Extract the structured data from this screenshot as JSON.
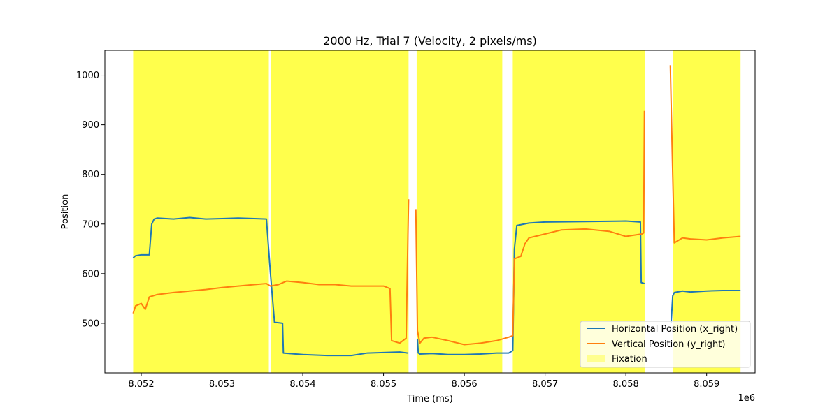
{
  "chart_data": {
    "type": "line",
    "title": "2000 Hz, Trial 7 (Velocity, 2 pixels/ms)",
    "xlabel": "Time (ms)",
    "ylabel": "Position",
    "x_offset_label": "1e6",
    "xlim": [
      8.05155,
      8.0596
    ],
    "ylim": [
      400,
      1050
    ],
    "x_ticks": [
      8.052,
      8.053,
      8.054,
      8.055,
      8.056,
      8.057,
      8.058,
      8.059
    ],
    "x_tick_labels": [
      "8.052",
      "8.053",
      "8.054",
      "8.055",
      "8.056",
      "8.057",
      "8.058",
      "8.059"
    ],
    "y_ticks": [
      500,
      600,
      700,
      800,
      900,
      1000
    ],
    "y_tick_labels": [
      "500",
      "600",
      "700",
      "800",
      "900",
      "1000"
    ],
    "grid": false,
    "legend_position": "lower-right",
    "colors": {
      "x_right": "#1f77b4",
      "y_right": "#ff7f0e",
      "fixation": "#ffff00"
    },
    "legend": [
      {
        "label": "Horizontal Position (x_right)",
        "type": "line",
        "color": "#1f77b4"
      },
      {
        "label": "Vertical Position (y_right)",
        "type": "line",
        "color": "#ff7f0e"
      },
      {
        "label": "Fixation",
        "type": "patch",
        "color": "#ffff00"
      }
    ],
    "fixation_spans": [
      [
        8.0519,
        8.05358
      ],
      [
        8.05361,
        8.05531
      ],
      [
        8.05541,
        8.05647
      ],
      [
        8.0566,
        8.05824
      ],
      [
        8.05858,
        8.05942
      ]
    ],
    "series": [
      {
        "name": "Horizontal Position (x_right)",
        "color": "#1f77b4",
        "segments": [
          {
            "x": [
              8.0519,
              8.05193,
              8.052,
              8.0521,
              8.05213,
              8.05216,
              8.0522,
              8.0524,
              8.0526,
              8.0528,
              8.053,
              8.0532,
              8.0534,
              8.05355,
              8.0536,
              8.05365,
              8.05375,
              8.05376,
              8.054,
              8.0543,
              8.0546,
              8.0548,
              8.055,
              8.0552,
              8.0553
            ],
            "y": [
              632,
              636,
              638,
              638,
              700,
              710,
              712,
              710,
              713,
              710,
              711,
              712,
              711,
              710,
              600,
              502,
              500,
              440,
              437,
              435,
              435,
              440,
              441,
              442,
              440
            ]
          },
          {
            "x": [
              8.05542,
              8.05543,
              8.05545,
              8.0556,
              8.0558,
              8.056,
              8.0562,
              8.0564,
              8.05655,
              8.0566,
              8.05662,
              8.05665,
              8.0568,
              8.057,
              8.0575,
              8.058,
              8.05818,
              8.05819,
              8.05823
            ],
            "y": [
              468,
              440,
              438,
              439,
              437,
              437,
              438,
              440,
              440,
              445,
              650,
              697,
              702,
              704,
              705,
              706,
              704,
              582,
              580
            ]
          },
          {
            "x": [
              8.05856,
              8.05858,
              8.0586,
              8.0587,
              8.0588,
              8.059,
              8.0592,
              8.05942
            ],
            "y": [
              500,
              555,
              562,
              565,
              563,
              565,
              566,
              566
            ]
          }
        ]
      },
      {
        "name": "Vertical Position (y_right)",
        "color": "#ff7f0e",
        "segments": [
          {
            "x": [
              8.0519,
              8.05193,
              8.052,
              8.05205,
              8.0521,
              8.0522,
              8.0524,
              8.0526,
              8.0528,
              8.053,
              8.0532,
              8.0534,
              8.05355,
              8.0536,
              8.0537,
              8.0538,
              8.054,
              8.0542,
              8.0544,
              8.0546,
              8.0548,
              8.055,
              8.05508,
              8.0551,
              8.0552,
              8.05528,
              8.05531
            ],
            "y": [
              520,
              535,
              540,
              528,
              553,
              558,
              562,
              565,
              568,
              572,
              575,
              578,
              580,
              575,
              578,
              585,
              582,
              578,
              578,
              575,
              575,
              575,
              570,
              465,
              460,
              470,
              750
            ]
          },
          {
            "x": [
              8.0554,
              8.05542,
              8.05545,
              8.0555,
              8.0556,
              8.0558,
              8.056,
              8.0562,
              8.0564,
              8.05655,
              8.0566,
              8.05662,
              8.0567,
              8.05675,
              8.0568,
              8.057,
              8.0572,
              8.0575,
              8.0578,
              8.058,
              8.0582,
              8.05822,
              8.05823
            ],
            "y": [
              730,
              485,
              460,
              470,
              472,
              465,
              457,
              460,
              465,
              472,
              475,
              630,
              635,
              660,
              672,
              680,
              688,
              690,
              685,
              675,
              680,
              682,
              928
            ]
          },
          {
            "x": [
              8.05855,
              8.05858,
              8.0586,
              8.0587,
              8.0588,
              8.059,
              8.0592,
              8.05942
            ],
            "y": [
              1020,
              800,
              662,
              672,
              670,
              668,
              672,
              675
            ]
          }
        ]
      }
    ]
  }
}
